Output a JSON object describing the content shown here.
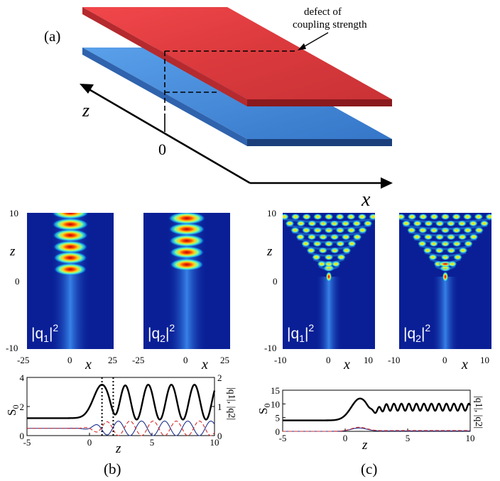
{
  "panel_labels": {
    "a": "(a)",
    "b": "(b)",
    "c": "(c)"
  },
  "diagram": {
    "annotation_line1": "defect of",
    "annotation_line2": "coupling strength",
    "axis_z": "z",
    "axis_x": "x",
    "origin": "0",
    "colors": {
      "top_plate": "#d9363a",
      "bottom_plate": "#3f84d6"
    }
  },
  "heatmaps": {
    "y_label": "z",
    "x_label": "x",
    "b": {
      "yticks": [
        "10",
        "0",
        "-10"
      ],
      "xticks": [
        "-25",
        "0",
        "25"
      ],
      "x_range": [
        -25,
        25
      ],
      "z_range": [
        -10,
        10
      ],
      "left_title_base": "|q",
      "left_title_sub": "1",
      "left_title_end": "|",
      "left_title_sup": "2",
      "right_title_base": "|q",
      "right_title_sub": "2",
      "right_title_end": "|",
      "right_title_sup": "2",
      "blob_z_q1": [
        10,
        8.3,
        6.7,
        5.0,
        3.4,
        1.7
      ],
      "blob_z_q2": [
        9.2,
        7.6,
        5.9,
        4.2,
        2.4
      ]
    },
    "c": {
      "yticks": [
        "10",
        "0",
        "-10"
      ],
      "xticks": [
        "-10",
        "0",
        "10"
      ],
      "x_range": [
        -10,
        10
      ],
      "z_range": [
        -10,
        10
      ],
      "left_title_base": "|q",
      "left_title_sub": "1",
      "left_title_end": "|",
      "left_title_sup": "2",
      "right_title_base": "|q",
      "right_title_sub": "2",
      "right_title_end": "|",
      "right_title_sup": "2"
    }
  },
  "chart_data": [
    {
      "type": "line",
      "panel": "b",
      "xlabel": "z",
      "ylabel": "S",
      "ylabel_sub": "0",
      "y2label": "|q1|, |q2|",
      "xlim": [
        -5,
        10
      ],
      "ylim": [
        0,
        4
      ],
      "y2lim": [
        0,
        2
      ],
      "xticks": [
        "-5",
        "0",
        "5",
        "10"
      ],
      "yticks": [
        "0",
        "2",
        "4"
      ],
      "y2ticks": [
        "0",
        "1",
        "2"
      ],
      "vlines_z": [
        1.0,
        1.9
      ],
      "series": [
        {
          "name": "S0",
          "color": "#000000",
          "baseline": 1.2,
          "rise_center": 0.6,
          "peak": 3.5,
          "osc_mean": 2.3,
          "osc_amp": 1.2,
          "period": 1.85
        },
        {
          "name": "|q1|",
          "color": "#1c2e8c",
          "baseline": 0.25,
          "amp": 0.25,
          "period": 1.85
        },
        {
          "name": "|q2|",
          "color": "#d62828",
          "dashed": true,
          "baseline": 0.25,
          "amp": 0.25,
          "period": 1.85
        }
      ]
    },
    {
      "type": "line",
      "panel": "c",
      "xlabel": "z",
      "ylabel": "S",
      "ylabel_sub": "0",
      "y2label": "|q1|, |q2|",
      "xlim": [
        -5,
        10
      ],
      "ylim": [
        0,
        15
      ],
      "xticks": [
        "-5",
        "0",
        "5",
        "10"
      ],
      "yticks": [
        "0",
        "5",
        "10",
        "15"
      ],
      "series": [
        {
          "name": "S0",
          "color": "#000000",
          "baseline": 4.0,
          "rise_center": 0.3,
          "peak": 12.0,
          "osc_mean": 8.8,
          "osc_amp": 1.3,
          "period": 0.6
        },
        {
          "name": "|q1|",
          "color": "#1c2e8c",
          "baseline": 0.0,
          "bump_peak": 1.0
        },
        {
          "name": "|q2|",
          "color": "#d62828",
          "dashed": true,
          "baseline": 0.0,
          "bump_peak": 1.2
        }
      ]
    }
  ]
}
